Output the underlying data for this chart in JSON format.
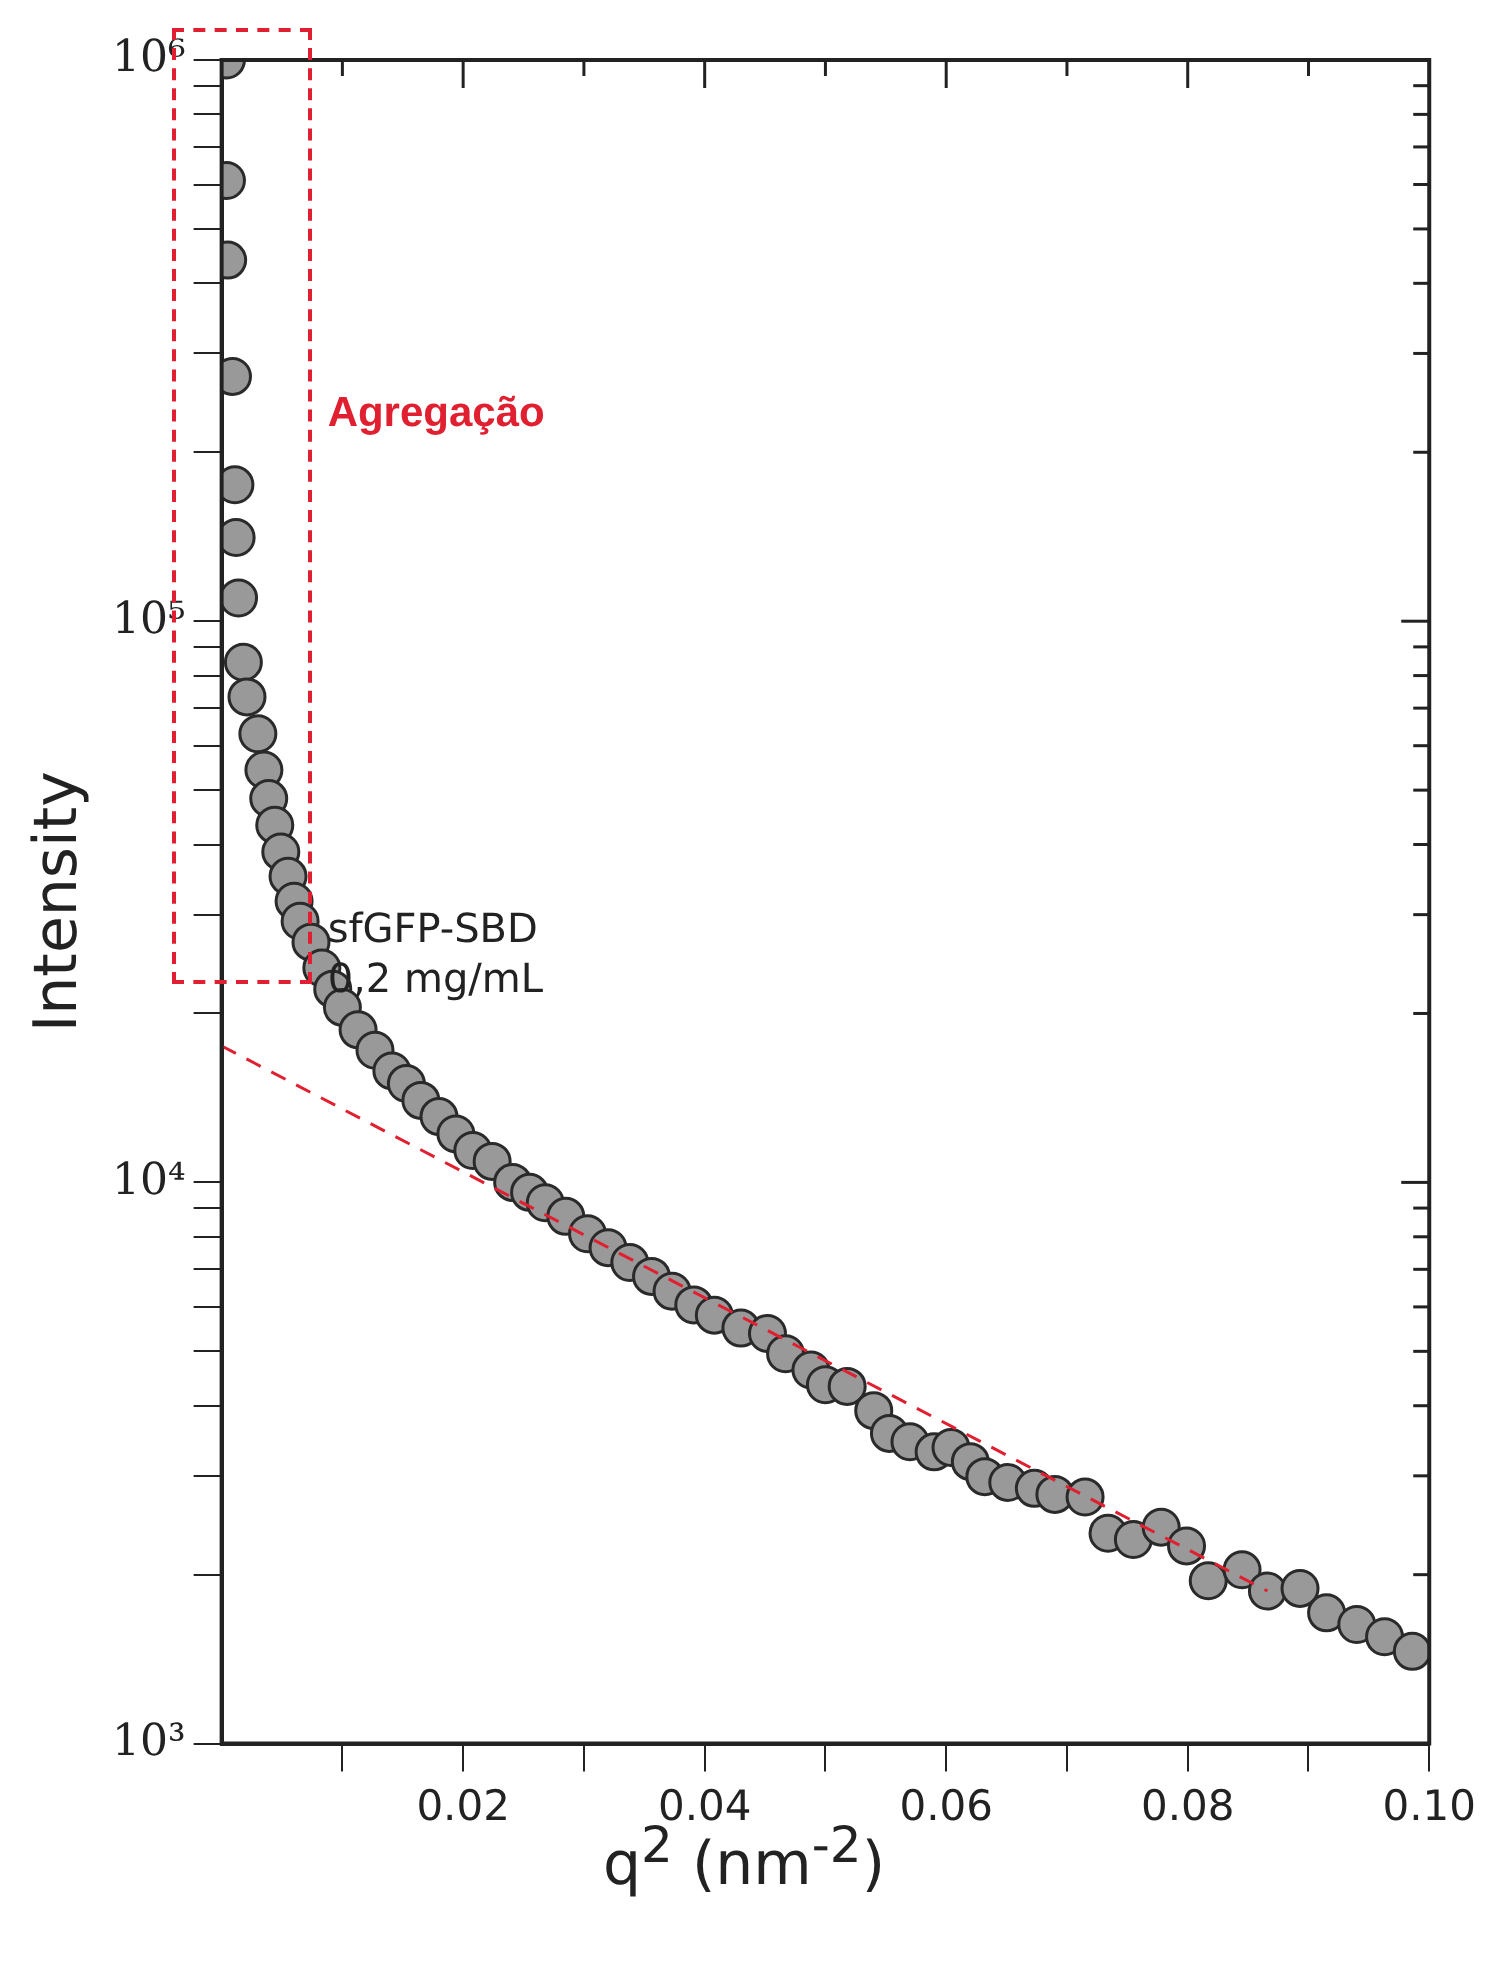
{
  "chart_data": {
    "type": "scatter",
    "xlabel": "q$^{2}$ (nm$^{-2}$)",
    "ylabel": "Intensity",
    "log": "y",
    "grid": false,
    "legend": false,
    "marker": "circle",
    "xlim": [
      0,
      0.1
    ],
    "ylim": [
      1000,
      1000000
    ],
    "xticks": [
      {
        "value": 0.01,
        "label": null
      },
      {
        "value": 0.02,
        "label": "0.02"
      },
      {
        "value": 0.03,
        "label": null
      },
      {
        "value": 0.04,
        "label": "0.04"
      },
      {
        "value": 0.05,
        "label": null
      },
      {
        "value": 0.06,
        "label": "0.06"
      },
      {
        "value": 0.07,
        "label": null
      },
      {
        "value": 0.08,
        "label": "0.08"
      },
      {
        "value": 0.09,
        "label": null
      },
      {
        "value": 0.1,
        "label": "0.10"
      }
    ],
    "yticks": [
      {
        "value": 1000,
        "label": "10³"
      },
      {
        "value": 2000,
        "label": null
      },
      {
        "value": 3000,
        "label": null
      },
      {
        "value": 4000,
        "label": null
      },
      {
        "value": 5000,
        "label": null
      },
      {
        "value": 6000,
        "label": null
      },
      {
        "value": 7000,
        "label": null
      },
      {
        "value": 8000,
        "label": null
      },
      {
        "value": 9000,
        "label": null
      },
      {
        "value": 10000,
        "label": "10⁴"
      },
      {
        "value": 20000,
        "label": null
      },
      {
        "value": 30000,
        "label": null
      },
      {
        "value": 40000,
        "label": null
      },
      {
        "value": 50000,
        "label": null
      },
      {
        "value": 60000,
        "label": null
      },
      {
        "value": 70000,
        "label": null
      },
      {
        "value": 80000,
        "label": null
      },
      {
        "value": 90000,
        "label": null
      },
      {
        "value": 100000,
        "label": "10⁵"
      },
      {
        "value": 200000,
        "label": null
      },
      {
        "value": 300000,
        "label": null
      },
      {
        "value": 400000,
        "label": null
      },
      {
        "value": 500000,
        "label": null
      },
      {
        "value": 600000,
        "label": null
      },
      {
        "value": 700000,
        "label": null
      },
      {
        "value": 800000,
        "label": null
      },
      {
        "value": 900000,
        "label": null
      },
      {
        "value": 1000000,
        "label": "10⁶"
      }
    ],
    "annotations": [
      "Agregação",
      "sfGFP-SBD\n0,2 mg/mL"
    ],
    "series": [
      {
        "type": "scatter",
        "color": "#999999",
        "x": [
          0.0004,
          0.0004,
          0.0005,
          0.0009,
          0.0011,
          0.0012,
          0.0014,
          0.0018,
          0.0021,
          0.003,
          0.0035,
          0.0039,
          0.0044,
          0.0049,
          0.0055,
          0.006,
          0.0065,
          0.0074,
          0.0083,
          0.0092,
          0.01,
          0.0113,
          0.0127,
          0.0141,
          0.0153,
          0.0165,
          0.018,
          0.0194,
          0.0208,
          0.0224,
          0.0241,
          0.0255,
          0.0268,
          0.0285,
          0.0303,
          0.032,
          0.0338,
          0.0356,
          0.0373,
          0.0391,
          0.0408,
          0.043,
          0.0452,
          0.0467,
          0.0488,
          0.05,
          0.0518,
          0.054,
          0.0553,
          0.057,
          0.059,
          0.0604,
          0.062,
          0.0632,
          0.0651,
          0.0673,
          0.069,
          0.0715,
          0.0734,
          0.0755,
          0.0778,
          0.0799,
          0.0817,
          0.0845,
          0.0866,
          0.0893,
          0.0915,
          0.094,
          0.0963,
          0.0986
        ],
        "values": [
          1000000,
          610000,
          440000,
          273000,
          175000,
          141000,
          110000,
          84500,
          73300,
          63000,
          54300,
          48300,
          43300,
          38800,
          35100,
          31700,
          29200,
          26800,
          24100,
          22100,
          20500,
          18700,
          17200,
          15800,
          15000,
          14000,
          13100,
          12200,
          11400,
          10900,
          10000,
          9600,
          9200,
          8700,
          8100,
          7650,
          7200,
          6800,
          6400,
          6050,
          5800,
          5500,
          5380,
          4950,
          4630,
          4360,
          4330,
          3920,
          3570,
          3450,
          3310,
          3370,
          3180,
          2990,
          2920,
          2850,
          2780,
          2750,
          2370,
          2310,
          2430,
          2250,
          1950,
          2040,
          1870,
          1890,
          1710,
          1630,
          1550,
          1460
        ]
      },
      {
        "type": "line",
        "color": "#e02030",
        "line_style": "dashed",
        "marker": "none",
        "x": [
          0,
          0.0866
        ],
        "values": [
          17500,
          1870
        ]
      }
    ]
  }
}
